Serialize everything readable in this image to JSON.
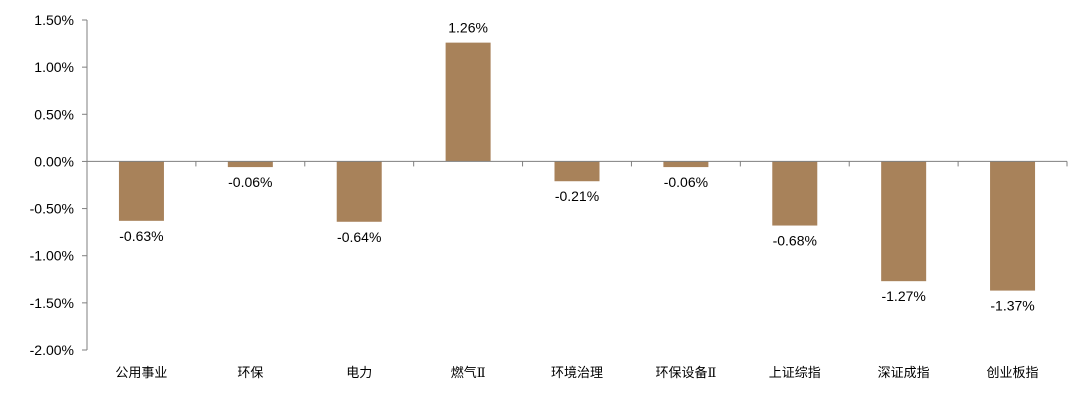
{
  "chart_data": {
    "type": "bar",
    "categories": [
      "公用事业",
      "环保",
      "电力",
      "燃气Ⅱ",
      "环境治理",
      "环保设备Ⅱ",
      "上证综指",
      "深证成指",
      "创业板指"
    ],
    "values": [
      -0.63,
      -0.06,
      -0.64,
      1.26,
      -0.21,
      -0.06,
      -0.68,
      -1.27,
      -1.37
    ],
    "data_labels": [
      "-0.63%",
      "-0.06%",
      "-0.64%",
      "1.26%",
      "-0.21%",
      "-0.06%",
      "-0.68%",
      "-1.27%",
      "-1.37%"
    ],
    "ylim": [
      -2.0,
      1.5
    ],
    "yticks": [
      1.5,
      1.0,
      0.5,
      0.0,
      -0.5,
      -1.0,
      -1.5,
      -2.0
    ],
    "ytick_labels": [
      "1.50%",
      "1.00%",
      "0.50%",
      "0.00%",
      "-0.50%",
      "-1.00%",
      "-1.50%",
      "-2.00%"
    ],
    "grid": false,
    "bar_color": "#A8825A",
    "axis_color": "#7F7F7F"
  }
}
